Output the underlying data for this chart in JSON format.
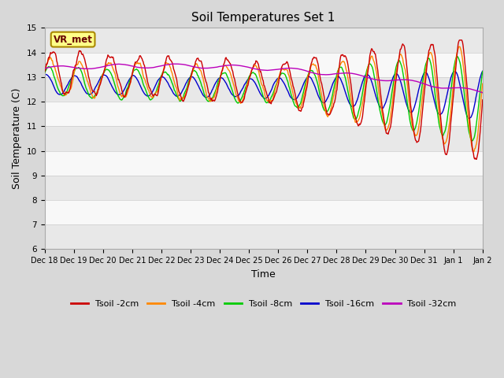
{
  "title": "Soil Temperatures Set 1",
  "xlabel": "Time",
  "ylabel": "Soil Temperature (C)",
  "ylim": [
    6.0,
    15.0
  ],
  "yticks": [
    6.0,
    7.0,
    8.0,
    9.0,
    10.0,
    11.0,
    12.0,
    13.0,
    14.0,
    15.0
  ],
  "fig_bg_color": "#d8d8d8",
  "plot_bg_color": "#ffffff",
  "band_colors": [
    "#e8e8e8",
    "#f8f8f8"
  ],
  "series_colors": {
    "2cm": "#cc0000",
    "4cm": "#ff8800",
    "8cm": "#00cc00",
    "16cm": "#0000cc",
    "32cm": "#bb00bb"
  },
  "legend_labels": [
    "Tsoil -2cm",
    "Tsoil -4cm",
    "Tsoil -8cm",
    "Tsoil -16cm",
    "Tsoil -32cm"
  ],
  "vr_met_label": "VR_met",
  "vr_met_box_color": "#ffff88",
  "vr_met_text_color": "#660000",
  "x_tick_labels": [
    "Dec 18",
    "Dec 19",
    "Dec 20",
    "Dec 21",
    "Dec 22",
    "Dec 23",
    "Dec 24",
    "Dec 25",
    "Dec 26",
    "Dec 27",
    "Dec 28",
    "Dec 29",
    "Dec 30",
    "Dec 31",
    "Jan 1",
    "Jan 2"
  ],
  "n_points": 720
}
